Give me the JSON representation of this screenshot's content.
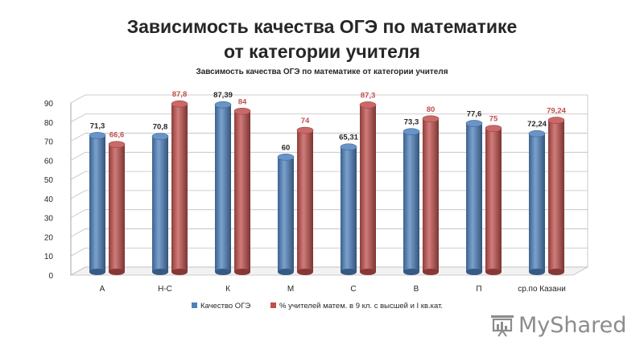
{
  "slide": {
    "title_line1": "Зависимость качества ОГЭ по математике",
    "title_line2": "от категории учителя"
  },
  "watermark": {
    "text": "MyShared",
    "icon": "presentation-chart-icon"
  },
  "chart_data": {
    "type": "bar",
    "title": "Завсимость  качества  ОГЭ по математике  от категории  учителя",
    "categories": [
      "А",
      "Н-С",
      "К",
      "М",
      "С",
      "В",
      "П",
      "ср.по Казани"
    ],
    "series": [
      {
        "name": "Качество ОГЭ",
        "color": "#4f81bd",
        "values": [
          71.3,
          70.8,
          87.39,
          60,
          65.31,
          73.3,
          77.6,
          72.24
        ],
        "labels": [
          "71,3",
          "70,8",
          "87,39",
          "60",
          "65,31",
          "73,3",
          "77,6",
          "72,24"
        ],
        "label_color": "#262626"
      },
      {
        "name": "% учителей матем. в 9 кл. с высшей и I кв.кат.",
        "color": "#c0504d",
        "values": [
          66.6,
          87.8,
          84,
          74,
          87.3,
          80,
          75,
          79.24
        ],
        "labels": [
          "66,6",
          "87,8",
          "84",
          "74",
          "87,3",
          "80",
          "75",
          "79,24"
        ],
        "label_color": "#c0504d"
      }
    ],
    "ylim": [
      0,
      90
    ],
    "yticks": [
      "0",
      "10",
      "20",
      "30",
      "40",
      "50",
      "60",
      "70",
      "80",
      "90"
    ],
    "grid": true,
    "legend_position": "bottom",
    "style": "3d-cylinder"
  }
}
